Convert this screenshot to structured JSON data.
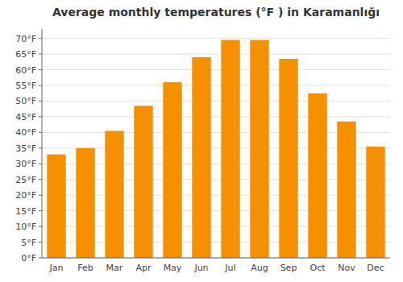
{
  "chart_data": {
    "type": "bar",
    "title": "Average monthly temperatures (°F ) in Karamanlığı",
    "categories": [
      "Jan",
      "Feb",
      "Mar",
      "Apr",
      "May",
      "Jun",
      "Jul",
      "Aug",
      "Sep",
      "Oct",
      "Nov",
      "Dec"
    ],
    "values": [
      33,
      35,
      40.5,
      48.5,
      56,
      64,
      69.5,
      69.5,
      63.5,
      52.5,
      43.5,
      35.5
    ],
    "color": "#F59000",
    "ylim": [
      0,
      73
    ],
    "yticks": [
      {
        "value": 0,
        "label": "0°F"
      },
      {
        "value": 5,
        "label": "5°F"
      },
      {
        "value": 10,
        "label": "10°F"
      },
      {
        "value": 15,
        "label": "15°F"
      },
      {
        "value": 20,
        "label": "20°F"
      },
      {
        "value": 25,
        "label": "25°F"
      },
      {
        "value": 30,
        "label": "30°F"
      },
      {
        "value": 35,
        "label": "35°F"
      },
      {
        "value": 40,
        "label": "40°F"
      },
      {
        "value": 45,
        "label": "45°F"
      },
      {
        "value": 50,
        "label": "50°F"
      },
      {
        "value": 55,
        "label": "55°F"
      },
      {
        "value": 60,
        "label": "60°F"
      },
      {
        "value": 65,
        "label": "65°F"
      },
      {
        "value": 70,
        "label": "70°F"
      }
    ],
    "grid": true
  }
}
